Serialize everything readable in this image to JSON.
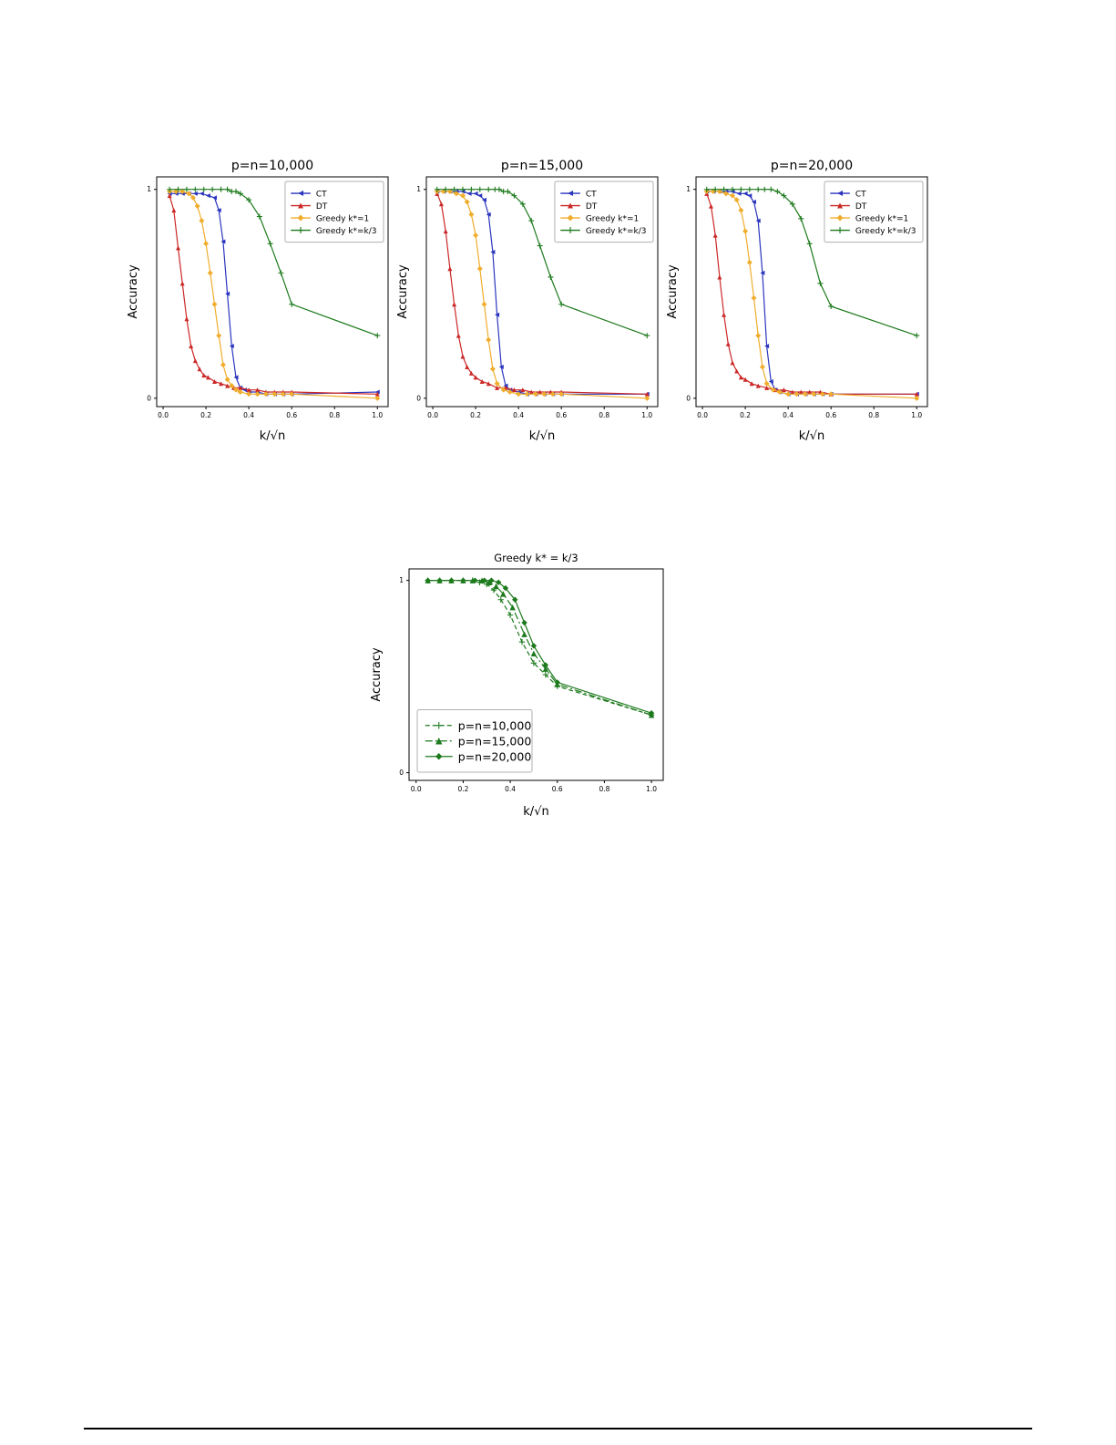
{
  "page": {
    "background": "#ffffff",
    "bottom_rule_color": "#000000"
  },
  "chart_data": [
    {
      "id": "panel-10000",
      "type": "line",
      "title": "p=n=10,000",
      "xlabel": "k/√n",
      "ylabel": "Accuracy",
      "xlim": [
        -0.03,
        1.05
      ],
      "ylim": [
        -0.04,
        1.06
      ],
      "xticks": [
        "0.0",
        "0.2",
        "0.4",
        "0.6",
        "0.8",
        "1.0"
      ],
      "yticks": [
        "0",
        "1"
      ],
      "grid": false,
      "legend": "upper-right",
      "legend_font": 9,
      "tick_font": 7.5,
      "title_font": 14,
      "label_font": 13,
      "margins": {
        "l": 34,
        "r": 10,
        "t": 26,
        "b": 44
      },
      "series": [
        {
          "name": "CT",
          "color": "#2b35be",
          "marker": "tri-left",
          "msize": 2.5,
          "dash": "",
          "x": [
            0.03,
            0.06,
            0.09,
            0.12,
            0.15,
            0.18,
            0.21,
            0.24,
            0.26,
            0.28,
            0.3,
            0.32,
            0.34,
            0.36,
            0.38,
            0.4,
            0.44,
            0.48,
            0.52,
            0.56,
            0.6,
            1.0
          ],
          "y": [
            0.98,
            0.98,
            0.98,
            0.98,
            0.98,
            0.98,
            0.97,
            0.96,
            0.9,
            0.75,
            0.5,
            0.25,
            0.1,
            0.05,
            0.04,
            0.03,
            0.03,
            0.02,
            0.02,
            0.02,
            0.02,
            0.03
          ]
        },
        {
          "name": "DT",
          "color": "#cc2727",
          "marker": "tri-up",
          "msize": 2.5,
          "dash": "",
          "x": [
            0.03,
            0.05,
            0.07,
            0.09,
            0.11,
            0.13,
            0.15,
            0.17,
            0.19,
            0.21,
            0.24,
            0.27,
            0.3,
            0.33,
            0.36,
            0.4,
            0.44,
            0.48,
            0.52,
            0.56,
            0.6,
            1.0
          ],
          "y": [
            0.97,
            0.9,
            0.72,
            0.55,
            0.38,
            0.25,
            0.18,
            0.14,
            0.11,
            0.1,
            0.08,
            0.07,
            0.06,
            0.05,
            0.05,
            0.04,
            0.04,
            0.03,
            0.03,
            0.03,
            0.03,
            0.02
          ]
        },
        {
          "name": "Greedy k*=1",
          "color": "#f0ad2d",
          "marker": "diamond",
          "msize": 3,
          "dash": "",
          "x": [
            0.03,
            0.06,
            0.09,
            0.12,
            0.14,
            0.16,
            0.18,
            0.2,
            0.22,
            0.24,
            0.26,
            0.28,
            0.3,
            0.32,
            0.34,
            0.36,
            0.4,
            0.44,
            0.48,
            0.52,
            0.56,
            0.6,
            1.0
          ],
          "y": [
            0.99,
            0.99,
            0.99,
            0.98,
            0.96,
            0.92,
            0.85,
            0.74,
            0.6,
            0.45,
            0.3,
            0.16,
            0.09,
            0.06,
            0.04,
            0.03,
            0.02,
            0.02,
            0.02,
            0.02,
            0.02,
            0.02,
            0.0
          ]
        },
        {
          "name": "Greedy k*=k/3",
          "color": "#1d7a1d",
          "marker": "plus",
          "msize": 3,
          "dash": "",
          "x": [
            0.03,
            0.07,
            0.11,
            0.15,
            0.19,
            0.23,
            0.27,
            0.3,
            0.32,
            0.34,
            0.36,
            0.4,
            0.45,
            0.5,
            0.55,
            0.6,
            1.0
          ],
          "y": [
            1.0,
            1.0,
            1.0,
            1.0,
            1.0,
            1.0,
            1.0,
            1.0,
            0.99,
            0.99,
            0.98,
            0.95,
            0.87,
            0.74,
            0.6,
            0.45,
            0.3
          ]
        }
      ]
    },
    {
      "id": "panel-15000",
      "type": "line",
      "title": "p=n=15,000",
      "xlabel": "k/√n",
      "ylabel": "Accuracy",
      "xlim": [
        -0.03,
        1.05
      ],
      "ylim": [
        -0.04,
        1.06
      ],
      "xticks": [
        "0.0",
        "0.2",
        "0.4",
        "0.6",
        "0.8",
        "1.0"
      ],
      "yticks": [
        "0",
        "1"
      ],
      "grid": false,
      "legend": "upper-right",
      "legend_font": 9,
      "tick_font": 7.5,
      "title_font": 14,
      "label_font": 13,
      "margins": {
        "l": 34,
        "r": 10,
        "t": 26,
        "b": 44
      },
      "series": [
        {
          "name": "CT",
          "color": "#2b35be",
          "marker": "tri-left",
          "msize": 2.5,
          "dash": "",
          "x": [
            0.02,
            0.05,
            0.08,
            0.11,
            0.14,
            0.17,
            0.2,
            0.22,
            0.24,
            0.26,
            0.28,
            0.3,
            0.32,
            0.34,
            0.36,
            0.4,
            0.44,
            0.48,
            0.52,
            0.56,
            0.6,
            1.0
          ],
          "y": [
            0.99,
            0.99,
            0.99,
            0.99,
            0.99,
            0.98,
            0.98,
            0.97,
            0.95,
            0.88,
            0.7,
            0.4,
            0.15,
            0.06,
            0.04,
            0.03,
            0.02,
            0.02,
            0.02,
            0.02,
            0.02,
            0.02
          ]
        },
        {
          "name": "DT",
          "color": "#cc2727",
          "marker": "tri-up",
          "msize": 2.5,
          "dash": "",
          "x": [
            0.02,
            0.04,
            0.06,
            0.08,
            0.1,
            0.12,
            0.14,
            0.16,
            0.18,
            0.2,
            0.23,
            0.26,
            0.3,
            0.34,
            0.38,
            0.42,
            0.46,
            0.5,
            0.55,
            0.6,
            1.0
          ],
          "y": [
            0.98,
            0.93,
            0.8,
            0.62,
            0.45,
            0.3,
            0.2,
            0.15,
            0.12,
            0.1,
            0.08,
            0.07,
            0.05,
            0.05,
            0.04,
            0.04,
            0.03,
            0.03,
            0.03,
            0.03,
            0.02
          ]
        },
        {
          "name": "Greedy k*=1",
          "color": "#f0ad2d",
          "marker": "diamond",
          "msize": 3,
          "dash": "",
          "x": [
            0.02,
            0.05,
            0.08,
            0.11,
            0.14,
            0.16,
            0.18,
            0.2,
            0.22,
            0.24,
            0.26,
            0.28,
            0.3,
            0.33,
            0.36,
            0.4,
            0.44,
            0.48,
            0.52,
            0.56,
            0.6,
            1.0
          ],
          "y": [
            0.99,
            0.99,
            0.99,
            0.98,
            0.97,
            0.94,
            0.88,
            0.78,
            0.62,
            0.45,
            0.28,
            0.14,
            0.07,
            0.04,
            0.03,
            0.02,
            0.02,
            0.02,
            0.02,
            0.02,
            0.02,
            0.0
          ]
        },
        {
          "name": "Greedy k*=k/3",
          "color": "#1d7a1d",
          "marker": "plus",
          "msize": 3,
          "dash": "",
          "x": [
            0.02,
            0.06,
            0.1,
            0.14,
            0.18,
            0.22,
            0.26,
            0.29,
            0.31,
            0.33,
            0.35,
            0.38,
            0.42,
            0.46,
            0.5,
            0.55,
            0.6,
            1.0
          ],
          "y": [
            1.0,
            1.0,
            1.0,
            1.0,
            1.0,
            1.0,
            1.0,
            1.0,
            1.0,
            0.99,
            0.99,
            0.97,
            0.93,
            0.85,
            0.73,
            0.58,
            0.45,
            0.3
          ]
        }
      ]
    },
    {
      "id": "panel-20000",
      "type": "line",
      "title": "p=n=20,000",
      "xlabel": "k/√n",
      "ylabel": "Accuracy",
      "xlim": [
        -0.03,
        1.05
      ],
      "ylim": [
        -0.04,
        1.06
      ],
      "xticks": [
        "0.0",
        "0.2",
        "0.4",
        "0.6",
        "0.8",
        "1.0"
      ],
      "yticks": [
        "0",
        "1"
      ],
      "grid": false,
      "legend": "upper-right",
      "legend_font": 9,
      "tick_font": 7.5,
      "title_font": 14,
      "label_font": 13,
      "margins": {
        "l": 34,
        "r": 10,
        "t": 26,
        "b": 44
      },
      "series": [
        {
          "name": "CT",
          "color": "#2b35be",
          "marker": "tri-left",
          "msize": 2.5,
          "dash": "",
          "x": [
            0.02,
            0.05,
            0.08,
            0.11,
            0.14,
            0.17,
            0.2,
            0.22,
            0.24,
            0.26,
            0.28,
            0.3,
            0.32,
            0.34,
            0.36,
            0.4,
            0.44,
            0.48,
            0.52,
            0.56,
            0.6,
            1.0
          ],
          "y": [
            0.99,
            0.99,
            0.99,
            0.99,
            0.99,
            0.98,
            0.98,
            0.97,
            0.94,
            0.85,
            0.6,
            0.25,
            0.08,
            0.04,
            0.03,
            0.02,
            0.02,
            0.02,
            0.02,
            0.02,
            0.02,
            0.02
          ]
        },
        {
          "name": "DT",
          "color": "#cc2727",
          "marker": "tri-up",
          "msize": 2.5,
          "dash": "",
          "x": [
            0.02,
            0.04,
            0.06,
            0.08,
            0.1,
            0.12,
            0.14,
            0.16,
            0.18,
            0.2,
            0.23,
            0.26,
            0.3,
            0.34,
            0.38,
            0.42,
            0.46,
            0.5,
            0.55,
            0.6,
            1.0
          ],
          "y": [
            0.98,
            0.92,
            0.78,
            0.58,
            0.4,
            0.26,
            0.17,
            0.13,
            0.1,
            0.09,
            0.07,
            0.06,
            0.05,
            0.04,
            0.04,
            0.03,
            0.03,
            0.03,
            0.03,
            0.02,
            0.02
          ]
        },
        {
          "name": "Greedy k*=1",
          "color": "#f0ad2d",
          "marker": "diamond",
          "msize": 3,
          "dash": "",
          "x": [
            0.02,
            0.05,
            0.08,
            0.11,
            0.14,
            0.16,
            0.18,
            0.2,
            0.22,
            0.24,
            0.26,
            0.28,
            0.3,
            0.33,
            0.36,
            0.4,
            0.44,
            0.48,
            0.52,
            0.56,
            0.6,
            1.0
          ],
          "y": [
            0.99,
            0.99,
            0.99,
            0.98,
            0.97,
            0.95,
            0.9,
            0.8,
            0.65,
            0.48,
            0.3,
            0.15,
            0.07,
            0.04,
            0.03,
            0.02,
            0.02,
            0.02,
            0.02,
            0.02,
            0.02,
            0.0
          ]
        },
        {
          "name": "Greedy k*=k/3",
          "color": "#1d7a1d",
          "marker": "plus",
          "msize": 3,
          "dash": "",
          "x": [
            0.02,
            0.06,
            0.1,
            0.14,
            0.18,
            0.22,
            0.26,
            0.29,
            0.32,
            0.35,
            0.38,
            0.42,
            0.46,
            0.5,
            0.55,
            0.6,
            1.0
          ],
          "y": [
            1.0,
            1.0,
            1.0,
            1.0,
            1.0,
            1.0,
            1.0,
            1.0,
            1.0,
            0.99,
            0.97,
            0.93,
            0.86,
            0.74,
            0.55,
            0.44,
            0.3
          ]
        }
      ]
    },
    {
      "id": "panel-greedy-k3",
      "type": "line",
      "title": "Greedy k* = k/3",
      "xlabel": "k/√n",
      "ylabel": "Accuracy",
      "xlim": [
        -0.03,
        1.05
      ],
      "ylim": [
        -0.04,
        1.06
      ],
      "xticks": [
        "0.0",
        "0.2",
        "0.4",
        "0.6",
        "0.8",
        "1.0"
      ],
      "yticks": [
        "0",
        "1"
      ],
      "grid": false,
      "legend": "lower-left",
      "legend_font": 12.5,
      "tick_font": 7.5,
      "title_font": 11.5,
      "label_font": 13,
      "margins": {
        "l": 44,
        "r": 12,
        "t": 24,
        "b": 46
      },
      "series": [
        {
          "name": "p=n=10,000",
          "color": "#1d7a1d",
          "marker": "plus",
          "msize": 3.2,
          "dash": "5,3",
          "x": [
            0.05,
            0.1,
            0.15,
            0.2,
            0.24,
            0.27,
            0.3,
            0.33,
            0.36,
            0.4,
            0.45,
            0.5,
            0.55,
            0.6,
            1.0
          ],
          "y": [
            1.0,
            1.0,
            1.0,
            1.0,
            1.0,
            0.99,
            0.98,
            0.95,
            0.9,
            0.82,
            0.68,
            0.57,
            0.51,
            0.45,
            0.3
          ]
        },
        {
          "name": "p=n=15,000",
          "color": "#1d7a1d",
          "marker": "tri-up",
          "msize": 3.2,
          "dash": "8,3,2,3",
          "x": [
            0.05,
            0.1,
            0.15,
            0.2,
            0.24,
            0.28,
            0.31,
            0.34,
            0.37,
            0.41,
            0.46,
            0.5,
            0.55,
            0.6,
            1.0
          ],
          "y": [
            1.0,
            1.0,
            1.0,
            1.0,
            1.0,
            1.0,
            0.99,
            0.97,
            0.93,
            0.86,
            0.72,
            0.62,
            0.54,
            0.46,
            0.3
          ]
        },
        {
          "name": "p=n=20,000",
          "color": "#1d7a1d",
          "marker": "diamond",
          "msize": 3.2,
          "dash": "",
          "x": [
            0.05,
            0.1,
            0.15,
            0.2,
            0.25,
            0.29,
            0.32,
            0.35,
            0.38,
            0.42,
            0.46,
            0.5,
            0.55,
            0.6,
            1.0
          ],
          "y": [
            1.0,
            1.0,
            1.0,
            1.0,
            1.0,
            1.0,
            1.0,
            0.99,
            0.96,
            0.9,
            0.78,
            0.66,
            0.56,
            0.47,
            0.31
          ]
        }
      ]
    }
  ]
}
